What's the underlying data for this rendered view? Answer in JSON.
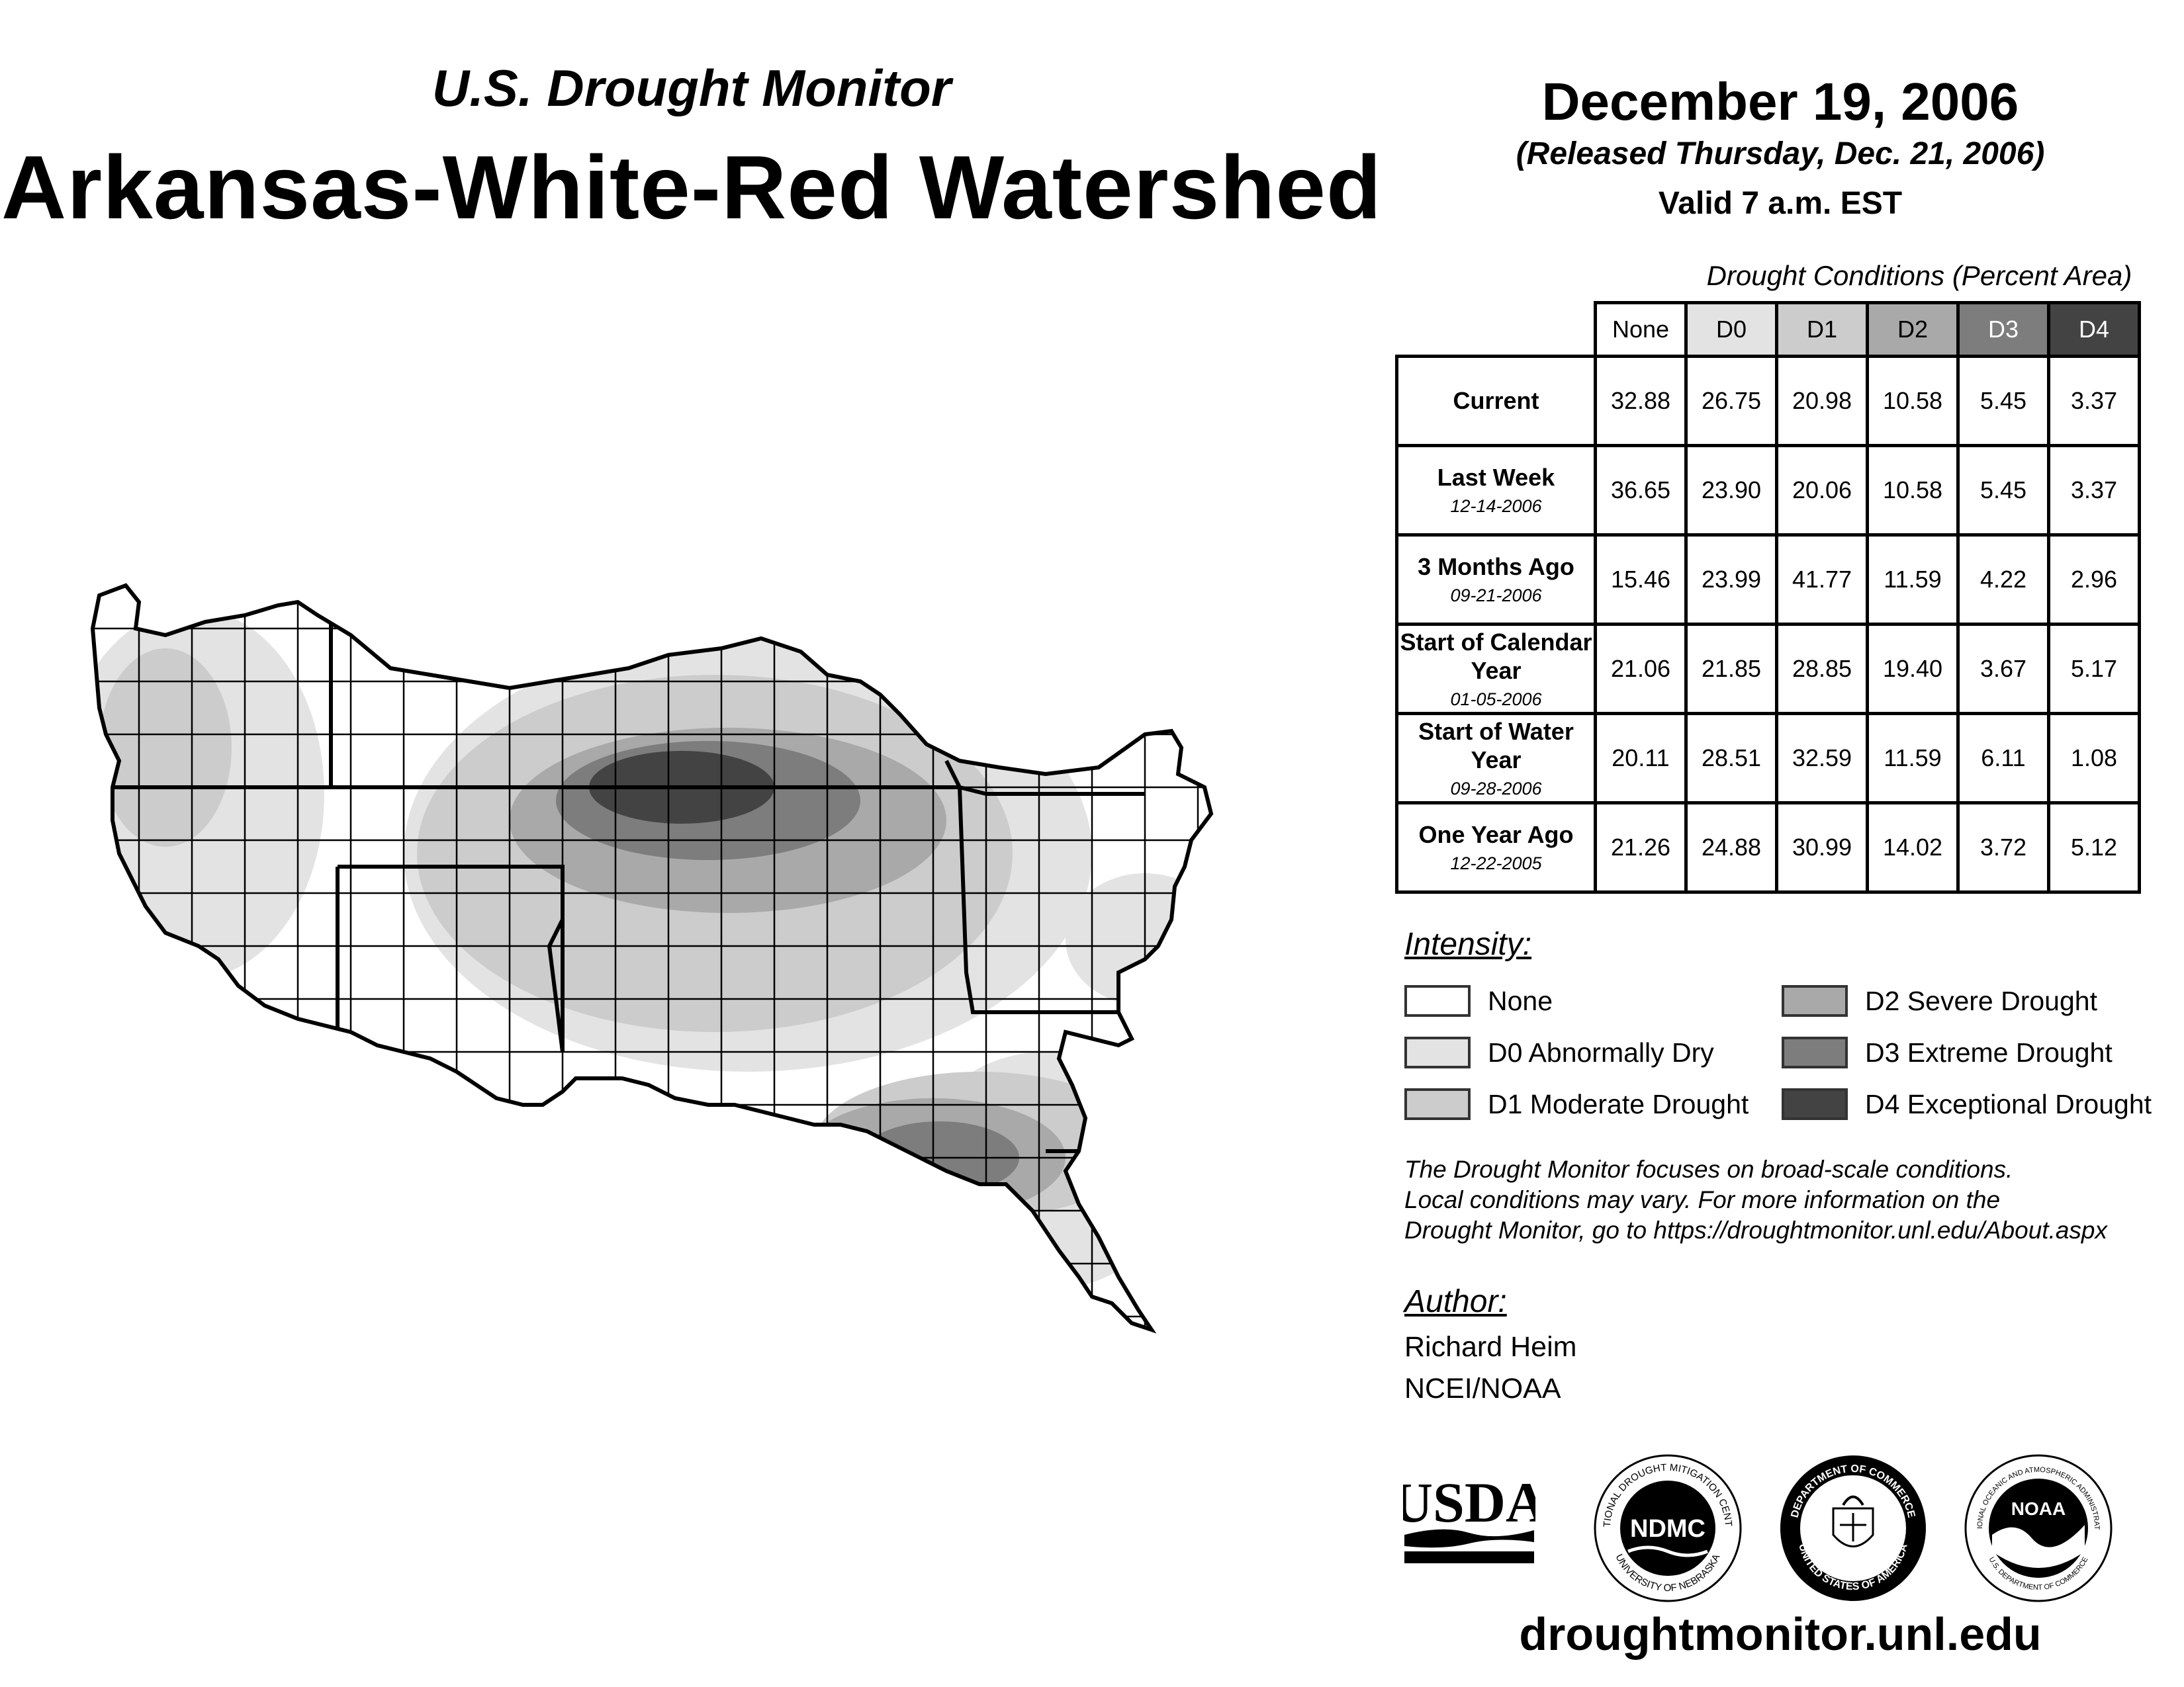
{
  "header": {
    "supertitle": "U.S. Drought Monitor",
    "title": "Arkansas-White-Red Watershed",
    "date": "December 19, 2006",
    "released": "(Released Thursday, Dec. 21, 2006)",
    "valid": "Valid 7 a.m. EST"
  },
  "table": {
    "caption": "Drought Conditions (Percent Area)",
    "columns": [
      "None",
      "D0",
      "D1",
      "D2",
      "D3",
      "D4"
    ],
    "rows": [
      {
        "label": "Current",
        "sub": "",
        "values": [
          "32.88",
          "26.75",
          "20.98",
          "10.58",
          "5.45",
          "3.37"
        ]
      },
      {
        "label": "Last Week",
        "sub": "12-14-2006",
        "values": [
          "36.65",
          "23.90",
          "20.06",
          "10.58",
          "5.45",
          "3.37"
        ]
      },
      {
        "label": "3 Months Ago",
        "sub": "09-21-2006",
        "values": [
          "15.46",
          "23.99",
          "41.77",
          "11.59",
          "4.22",
          "2.96"
        ]
      },
      {
        "label": "Start of Calendar Year",
        "sub": "01-05-2006",
        "values": [
          "21.06",
          "21.85",
          "28.85",
          "19.40",
          "3.67",
          "5.17"
        ]
      },
      {
        "label": "Start of Water Year",
        "sub": "09-28-2006",
        "values": [
          "20.11",
          "28.51",
          "32.59",
          "11.59",
          "6.11",
          "1.08"
        ]
      },
      {
        "label": "One Year Ago",
        "sub": "12-22-2005",
        "values": [
          "21.26",
          "24.88",
          "30.99",
          "14.02",
          "3.72",
          "5.12"
        ]
      }
    ]
  },
  "legend": {
    "title": "Intensity:",
    "items": [
      {
        "label": "None",
        "color": "#ffffff"
      },
      {
        "label": "D0 Abnormally Dry",
        "color": "#e3e3e3"
      },
      {
        "label": "D1 Moderate Drought",
        "color": "#cccccc"
      },
      {
        "label": "D2 Severe Drought",
        "color": "#a9a9a9"
      },
      {
        "label": "D3 Extreme Drought",
        "color": "#7d7d7d"
      },
      {
        "label": "D4 Exceptional Drought",
        "color": "#434343"
      }
    ]
  },
  "note": {
    "line1": "The Drought Monitor focuses on broad-scale conditions.",
    "line2": "Local conditions may vary. For more information on the",
    "line3": "Drought Monitor, go to https://droughtmonitor.unl.edu/About.aspx"
  },
  "author": {
    "title": "Author:",
    "name": "Richard Heim",
    "org": "NCEI/NOAA"
  },
  "logos": {
    "usda": "USDA",
    "ndmc": "NDMC",
    "ndmc_ring_top": "NATIONAL DROUGHT MITIGATION CENTER",
    "ndmc_ring_bottom": "UNIVERSITY OF NEBRASKA",
    "doc_ring_top": "DEPARTMENT OF COMMERCE",
    "doc_ring_bottom": "UNITED STATES OF AMERICA",
    "noaa": "NOAA",
    "noaa_ring_top": "NATIONAL OCEANIC AND ATMOSPHERIC ADMINISTRATION",
    "noaa_ring_bottom": "U.S. DEPARTMENT OF COMMERCE"
  },
  "website": "droughtmonitor.unl.edu"
}
